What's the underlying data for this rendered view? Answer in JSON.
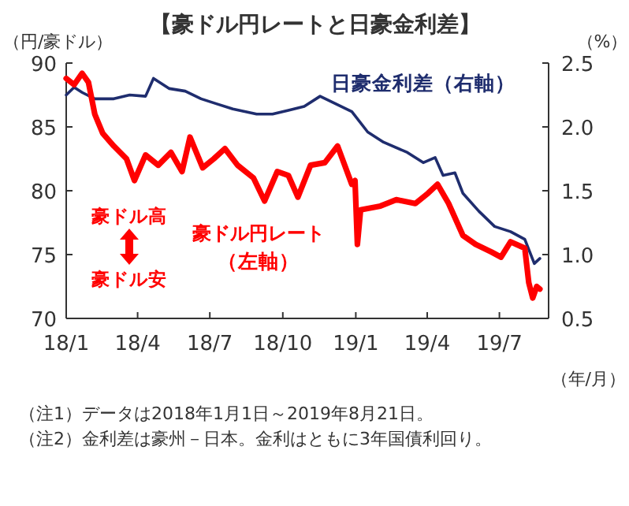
{
  "chart_data": {
    "type": "line",
    "title": "【豪ドル円レートと日豪金利差】",
    "ylabel": "（円/豪ドル）",
    "y2label": "（%）",
    "xlabel": "（年/月）",
    "xlim": [
      "2018-01-01",
      "2019-09-01"
    ],
    "xticks": [
      {
        "value": "2018-01-01",
        "label": "18/1"
      },
      {
        "value": "2018-04-01",
        "label": "18/4"
      },
      {
        "value": "2018-07-01",
        "label": "18/7"
      },
      {
        "value": "2018-10-01",
        "label": "18/10"
      },
      {
        "value": "2019-01-01",
        "label": "19/1"
      },
      {
        "value": "2019-04-01",
        "label": "19/4"
      },
      {
        "value": "2019-07-01",
        "label": "19/7"
      }
    ],
    "ylim": [
      70,
      90
    ],
    "yticks": [
      70,
      75,
      80,
      85,
      90
    ],
    "y2lim": [
      0.5,
      2.5
    ],
    "y2ticks": [
      0.5,
      {
        "value": 1,
        "label": "1.0"
      },
      1.5,
      {
        "value": 2,
        "label": "2.0"
      },
      2.5
    ],
    "grid": false,
    "series": [
      {
        "name": "日豪金利差（右軸）",
        "color": "#1f2d6e",
        "axis": "y2",
        "x": [
          "2018-01-01",
          "2018-01-11",
          "2018-01-21",
          "2018-02-06",
          "2018-03-02",
          "2018-03-22",
          "2018-04-11",
          "2018-04-21",
          "2018-05-11",
          "2018-05-31",
          "2018-06-20",
          "2018-07-10",
          "2018-07-30",
          "2018-08-29",
          "2018-09-18",
          "2018-10-08",
          "2018-10-28",
          "2018-11-17",
          "2018-12-07",
          "2018-12-27",
          "2019-01-16",
          "2019-02-05",
          "2019-03-07",
          "2019-03-27",
          "2019-04-11",
          "2019-04-21",
          "2019-05-06",
          "2019-05-16",
          "2019-06-05",
          "2019-06-25",
          "2019-07-15",
          "2019-08-02",
          "2019-08-14",
          "2019-08-21"
        ],
        "values": [
          2.25,
          2.31,
          2.27,
          2.22,
          2.22,
          2.25,
          2.24,
          2.38,
          2.3,
          2.28,
          2.22,
          2.18,
          2.14,
          2.1,
          2.1,
          2.13,
          2.16,
          2.24,
          2.18,
          2.12,
          1.96,
          1.88,
          1.8,
          1.72,
          1.76,
          1.62,
          1.64,
          1.48,
          1.34,
          1.22,
          1.18,
          1.12,
          0.93,
          0.97
        ]
      },
      {
        "name": "豪ドル円レート（左軸）",
        "color": "#ff0000",
        "axis": "y",
        "x": [
          "2018-01-01",
          "2018-01-11",
          "2018-01-21",
          "2018-01-29",
          "2018-02-06",
          "2018-02-16",
          "2018-03-02",
          "2018-03-18",
          "2018-03-28",
          "2018-04-11",
          "2018-04-27",
          "2018-05-13",
          "2018-05-27",
          "2018-06-06",
          "2018-06-22",
          "2018-07-06",
          "2018-07-20",
          "2018-08-05",
          "2018-08-25",
          "2018-09-08",
          "2018-09-24",
          "2018-10-08",
          "2018-10-20",
          "2018-11-05",
          "2018-11-23",
          "2018-12-09",
          "2018-12-27",
          "2018-12-31",
          "2019-01-03",
          "2019-01-07",
          "2019-02-01",
          "2019-02-21",
          "2019-03-17",
          "2019-04-02",
          "2019-04-14",
          "2019-04-28",
          "2019-05-16",
          "2019-06-01",
          "2019-06-21",
          "2019-07-03",
          "2019-07-15",
          "2019-08-02",
          "2019-08-07",
          "2019-08-12",
          "2019-08-17",
          "2019-08-21"
        ],
        "values": [
          88.8,
          88.3,
          89.2,
          88.5,
          86,
          84.5,
          83.5,
          82.5,
          80.8,
          82.8,
          82,
          83,
          81.5,
          84.2,
          81.8,
          82.5,
          83.3,
          82,
          81,
          79.2,
          81.5,
          81.2,
          79.5,
          82,
          82.2,
          83.5,
          80.5,
          80.8,
          75.8,
          78.5,
          78.8,
          79.3,
          79,
          79.8,
          80.5,
          79,
          76.5,
          75.8,
          75.2,
          74.8,
          76,
          75.5,
          72.8,
          71.6,
          72.5,
          72.3
        ]
      }
    ],
    "annotations": [
      "豪ドル高",
      "豪ドル安",
      "（注1）データは2018年1月1日～2019年8月21日。",
      "（注2）金利差は豪州－日本。金利はともに3年国債利回り。"
    ]
  }
}
